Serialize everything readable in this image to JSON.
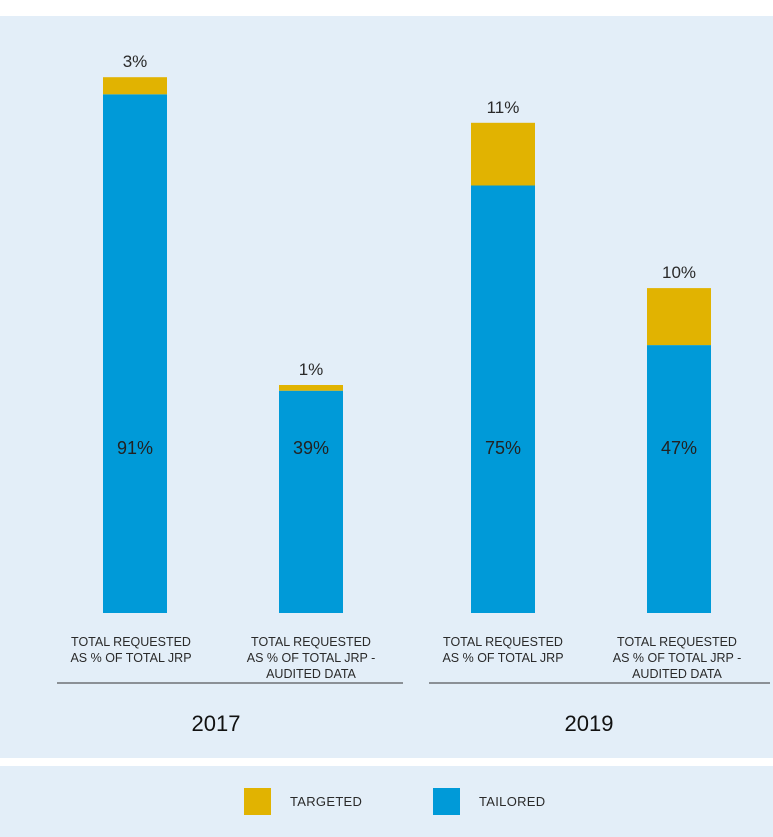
{
  "colors": {
    "targeted": "#e1b301",
    "tailored": "#009ad8",
    "panel": "#e3eef8"
  },
  "legend": {
    "targeted": "TARGETED",
    "tailored": "TAILORED"
  },
  "chart_data": {
    "type": "bar",
    "stacked": true,
    "categories": [
      [
        "TOTAL REQUESTED",
        "AS % OF TOTAL JRP"
      ],
      [
        "TOTAL REQUESTED",
        "AS % OF TOTAL JRP -",
        "AUDITED DATA"
      ],
      [
        "TOTAL REQUESTED",
        "AS % OF TOTAL JRP"
      ],
      [
        "TOTAL REQUESTED",
        "AS % OF TOTAL JRP -",
        "AUDITED DATA"
      ]
    ],
    "groups": [
      "2017",
      "2019"
    ],
    "series": [
      {
        "name": "TAILORED",
        "values": [
          91,
          39,
          75,
          47
        ],
        "labels": [
          "91%",
          "39%",
          "75%",
          "47%"
        ]
      },
      {
        "name": "TARGETED",
        "values": [
          3,
          1,
          11,
          10
        ],
        "labels": [
          "3%",
          "1%",
          "11%",
          "10%"
        ]
      }
    ],
    "ylim": [
      0,
      100
    ]
  }
}
